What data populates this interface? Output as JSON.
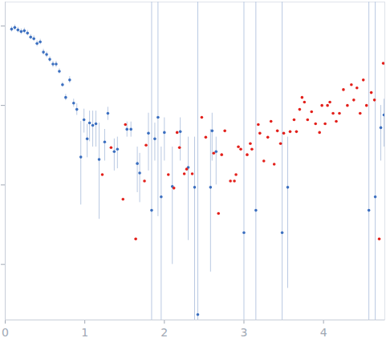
{
  "chart_data": {
    "type": "scatter",
    "log": "y",
    "tick_labels": "x",
    "grid": false,
    "xlim": [
      0,
      4.77
    ],
    "xticks": [
      0,
      1,
      2,
      3,
      4
    ],
    "ylim": [
      0.0002,
      2
    ],
    "yticks": [
      0.001,
      0.01,
      0.1,
      1
    ],
    "series": [
      {
        "color": "#3b6fc0",
        "marker": "circle",
        "x": [
          0.08,
          0.12,
          0.16,
          0.2,
          0.24,
          0.28,
          0.32,
          0.36,
          0.4,
          0.44,
          0.48,
          0.52,
          0.56,
          0.6,
          0.64,
          0.68,
          0.72,
          0.76,
          0.81,
          0.86,
          0.9,
          0.95,
          0.99,
          1.03,
          1.06,
          1.1,
          1.14,
          1.18,
          1.25,
          1.29,
          1.37,
          1.41,
          1.53,
          1.58,
          1.66,
          1.69,
          1.8,
          1.84,
          1.88,
          1.92,
          1.96,
          2.0,
          2.1,
          2.2,
          2.3,
          2.38,
          2.42,
          2.58,
          2.6,
          2.65,
          3.0,
          3.15,
          3.48,
          3.55,
          4.57,
          4.65,
          4.72,
          4.76
        ],
        "values": [
          0.912,
          0.955,
          0.891,
          0.851,
          0.871,
          0.813,
          0.724,
          0.692,
          0.603,
          0.631,
          0.468,
          0.437,
          0.38,
          0.331,
          0.331,
          0.269,
          0.182,
          0.126,
          0.209,
          0.107,
          0.0891,
          0.0224,
          0.0661,
          0.038,
          0.0603,
          0.0562,
          0.0589,
          0.0209,
          0.0347,
          0.0794,
          0.0263,
          0.0282,
          0.0501,
          0.0501,
          0.0186,
          0.0141,
          0.0447,
          0.00479,
          0.038,
          0.0708,
          0.00708,
          0.0457,
          0.00955,
          0.0468,
          0.0166,
          0.00933,
          0.000234,
          0.00933,
          0.0479,
          0.0263,
          0.00251,
          0.00479,
          0.00251,
          0.00933,
          0.00479,
          0.00708,
          0.0525,
          0.0759
        ],
        "y_low": [
          0.84,
          0.88,
          0.82,
          0.78,
          0.8,
          0.75,
          0.67,
          0.64,
          0.55,
          0.58,
          0.43,
          0.4,
          0.35,
          0.3,
          0.3,
          0.25,
          0.17,
          0.115,
          0.19,
          0.095,
          0.075,
          0.0056,
          0.045,
          0.022,
          0.035,
          0.03,
          0.03,
          0.0037,
          0.02,
          0.065,
          0.015,
          0.016,
          0.04,
          0.04,
          0.008,
          0.006,
          0.015,
          0.0001,
          0.02,
          0.004,
          0.0001,
          0.02,
          0.001,
          0.02,
          0.002,
          0.0001,
          0.0001,
          0.0008,
          0.02,
          0.01,
          0.0001,
          0.0001,
          0.0001,
          0.0005,
          0.0001,
          0.0001,
          0.02,
          0.03
        ],
        "y_high": [
          0.98,
          1.03,
          0.96,
          0.92,
          0.94,
          0.88,
          0.78,
          0.75,
          0.65,
          0.68,
          0.51,
          0.47,
          0.41,
          0.36,
          0.36,
          0.29,
          0.195,
          0.138,
          0.23,
          0.12,
          0.105,
          0.063,
          0.09,
          0.058,
          0.085,
          0.085,
          0.085,
          0.06,
          0.05,
          0.095,
          0.038,
          0.04,
          0.062,
          0.062,
          0.03,
          0.025,
          0.08,
          5,
          0.06,
          5,
          0.03,
          0.07,
          0.03,
          0.07,
          0.04,
          0.04,
          5,
          0.05,
          0.08,
          0.04,
          5,
          5,
          5,
          0.04,
          5,
          5,
          0.1,
          0.12
        ]
      },
      {
        "color": "#e3201b",
        "marker": "circle",
        "x": [
          1.22,
          1.33,
          1.48,
          1.51,
          1.64,
          1.75,
          1.77,
          2.05,
          2.12,
          2.16,
          2.19,
          2.25,
          2.28,
          2.35,
          2.47,
          2.52,
          2.62,
          2.68,
          2.72,
          2.76,
          2.83,
          2.88,
          2.9,
          2.93,
          2.96,
          3.04,
          3.08,
          3.1,
          3.18,
          3.2,
          3.25,
          3.3,
          3.34,
          3.38,
          3.42,
          3.46,
          3.5,
          3.58,
          3.63,
          3.66,
          3.7,
          3.73,
          3.76,
          3.8,
          3.85,
          3.9,
          3.95,
          3.98,
          4.02,
          4.05,
          4.08,
          4.12,
          4.16,
          4.2,
          4.25,
          4.3,
          4.35,
          4.38,
          4.42,
          4.46,
          4.5,
          4.54,
          4.6,
          4.64,
          4.7,
          4.75
        ],
        "values": [
          0.0135,
          0.0295,
          0.00661,
          0.0575,
          0.00209,
          0.0112,
          0.0316,
          0.0135,
          0.00912,
          0.0457,
          0.0295,
          0.0138,
          0.0158,
          0.0138,
          0.0708,
          0.0398,
          0.0251,
          0.00437,
          0.024,
          0.0479,
          0.0112,
          0.0112,
          0.0135,
          0.0302,
          0.0282,
          0.024,
          0.0331,
          0.0282,
          0.0575,
          0.0447,
          0.02,
          0.0398,
          0.0631,
          0.0182,
          0.0479,
          0.0331,
          0.0447,
          0.0468,
          0.0661,
          0.0468,
          0.0891,
          0.126,
          0.11,
          0.0661,
          0.0832,
          0.0589,
          0.0457,
          0.1,
          0.0589,
          0.1,
          0.11,
          0.0794,
          0.0631,
          0.0794,
          0.158,
          0.1,
          0.182,
          0.117,
          0.166,
          0.0794,
          0.209,
          0.1,
          0.145,
          0.117,
          0.00209,
          0.339
        ]
      }
    ]
  }
}
